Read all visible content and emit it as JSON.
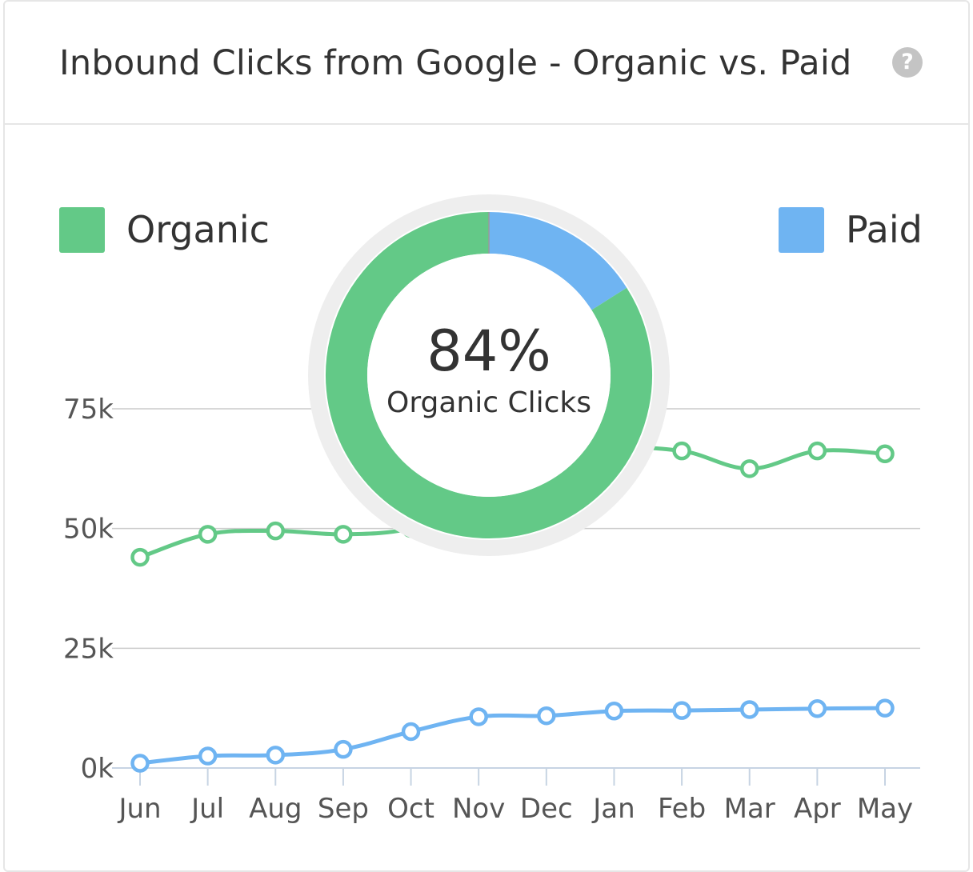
{
  "header": {
    "title": "Inbound Clicks from Google - Organic vs. Paid",
    "help_icon": "question-circle-icon"
  },
  "colors": {
    "organic": "#63c987",
    "paid": "#6fb4f2",
    "grid": "#cccccc",
    "axis": "#c7d4e3"
  },
  "chart_data": {
    "type": "line",
    "categories": [
      "Jun",
      "Jul",
      "Aug",
      "Sep",
      "Oct",
      "Nov",
      "Dec",
      "Jan",
      "Feb",
      "Mar",
      "Apr",
      "May"
    ],
    "series": [
      {
        "name": "Organic",
        "color": "#63c987",
        "values": [
          44000,
          48800,
          49500,
          48800,
          50000,
          55000,
          59000,
          66000,
          66200,
          62500,
          66200,
          65600
        ]
      },
      {
        "name": "Paid",
        "color": "#6fb4f2",
        "values": [
          1000,
          2500,
          2700,
          3900,
          7600,
          10700,
          10900,
          11900,
          12000,
          12200,
          12400,
          12500
        ]
      }
    ],
    "yticks": [
      "0k",
      "25k",
      "50k",
      "75k"
    ],
    "ytick_values": [
      0,
      25000,
      50000,
      75000
    ],
    "ylim": [
      0,
      75000
    ],
    "grid": true,
    "legend": "top",
    "donut": {
      "organic_fraction": 0.84,
      "paid_fraction": 0.16,
      "value_text": "84%",
      "label_text": "Organic Clicks"
    }
  }
}
